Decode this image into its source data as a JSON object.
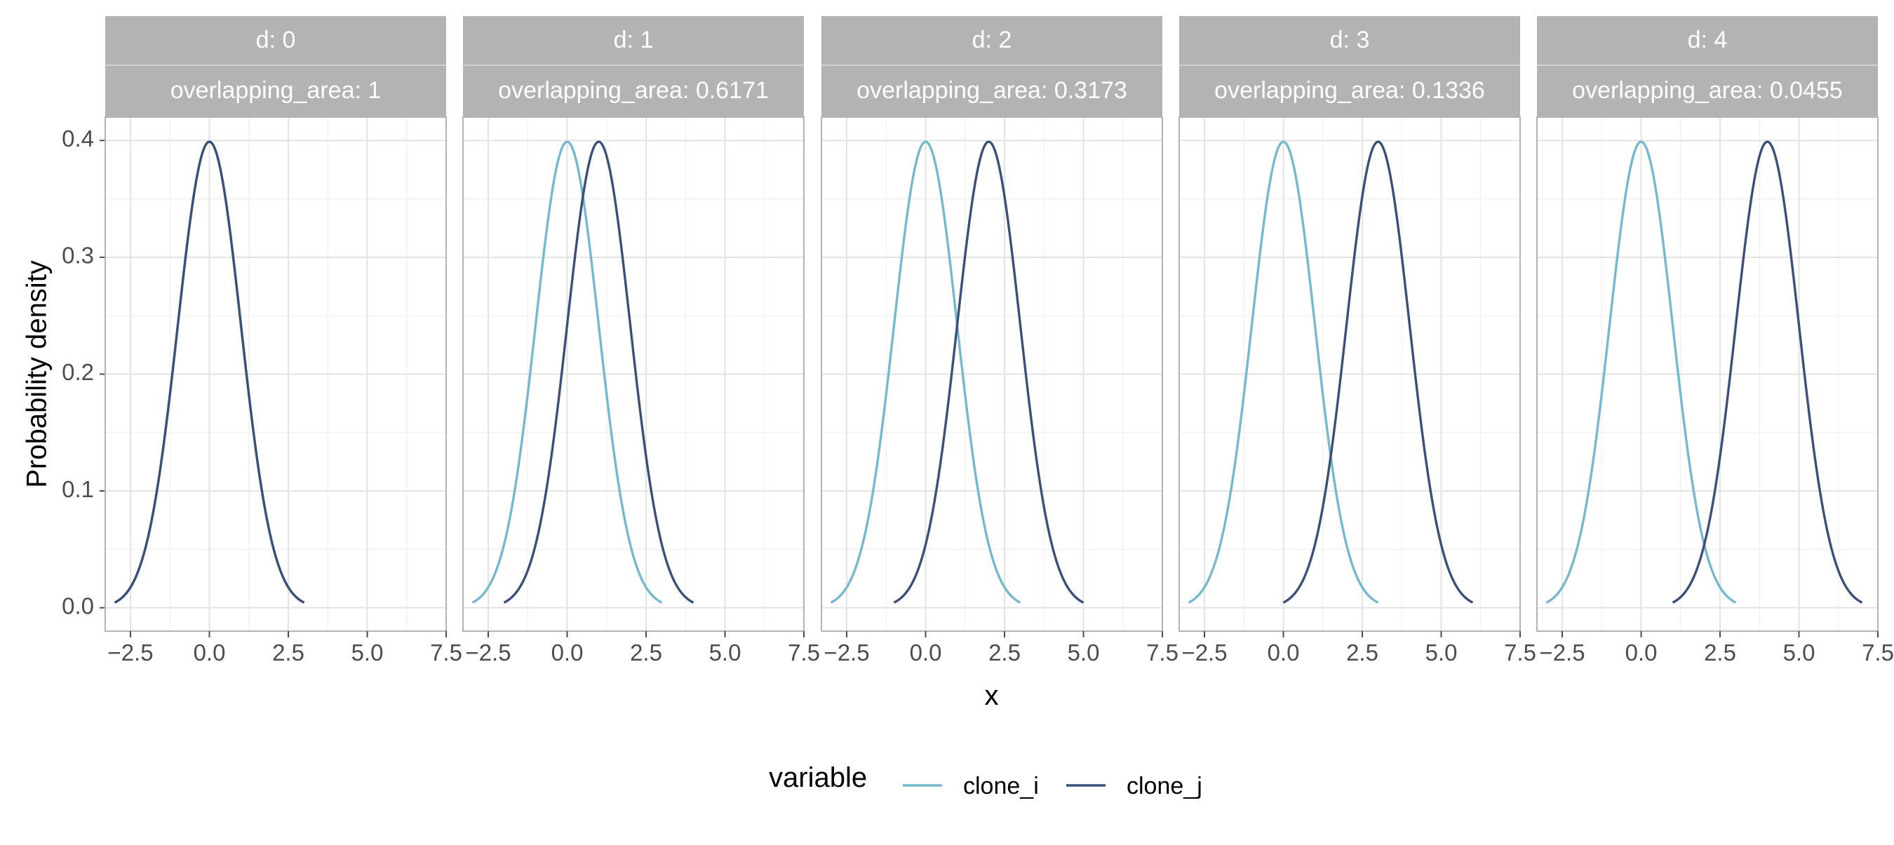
{
  "chart_data": {
    "type": "line",
    "xlabel": "x",
    "ylabel": "Probability density",
    "xlim": [
      -3.3,
      7.5
    ],
    "ylim": [
      -0.02,
      0.42
    ],
    "x_ticks": [
      -2.5,
      0.0,
      2.5,
      5.0,
      7.5
    ],
    "x_tick_labels": [
      "−2.5",
      "0.0",
      "2.5",
      "5.0",
      "7.5"
    ],
    "y_ticks": [
      0.0,
      0.1,
      0.2,
      0.3,
      0.4
    ],
    "y_tick_labels": [
      "0.0",
      "0.1",
      "0.2",
      "0.3",
      "0.4"
    ],
    "grid": true,
    "legend": {
      "title": "variable",
      "position": "bottom",
      "entries": [
        {
          "name": "clone_i",
          "color": "#74b9d0"
        },
        {
          "name": "clone_j",
          "color": "#3c4f7a"
        }
      ]
    },
    "distribution": "normal density, sd = 1, each curve spans mean ± 3",
    "panels": [
      {
        "strip_top": "d: 0",
        "strip_bottom": "overlapping_area: 1",
        "d": 0,
        "overlapping_area": 1,
        "series": [
          {
            "name": "clone_i",
            "mean": 0
          },
          {
            "name": "clone_j",
            "mean": 0
          }
        ]
      },
      {
        "strip_top": "d: 1",
        "strip_bottom": "overlapping_area: 0.6171",
        "d": 1,
        "overlapping_area": 0.6171,
        "series": [
          {
            "name": "clone_i",
            "mean": 0
          },
          {
            "name": "clone_j",
            "mean": 1
          }
        ]
      },
      {
        "strip_top": "d: 2",
        "strip_bottom": "overlapping_area: 0.3173",
        "d": 2,
        "overlapping_area": 0.3173,
        "series": [
          {
            "name": "clone_i",
            "mean": 0
          },
          {
            "name": "clone_j",
            "mean": 2
          }
        ]
      },
      {
        "strip_top": "d: 3",
        "strip_bottom": "overlapping_area: 0.1336",
        "d": 3,
        "overlapping_area": 0.1336,
        "series": [
          {
            "name": "clone_i",
            "mean": 0
          },
          {
            "name": "clone_j",
            "mean": 3
          }
        ]
      },
      {
        "strip_top": "d: 4",
        "strip_bottom": "overlapping_area: 0.0455",
        "d": 4,
        "overlapping_area": 0.0455,
        "series": [
          {
            "name": "clone_i",
            "mean": 0
          },
          {
            "name": "clone_j",
            "mean": 4
          }
        ]
      }
    ]
  }
}
